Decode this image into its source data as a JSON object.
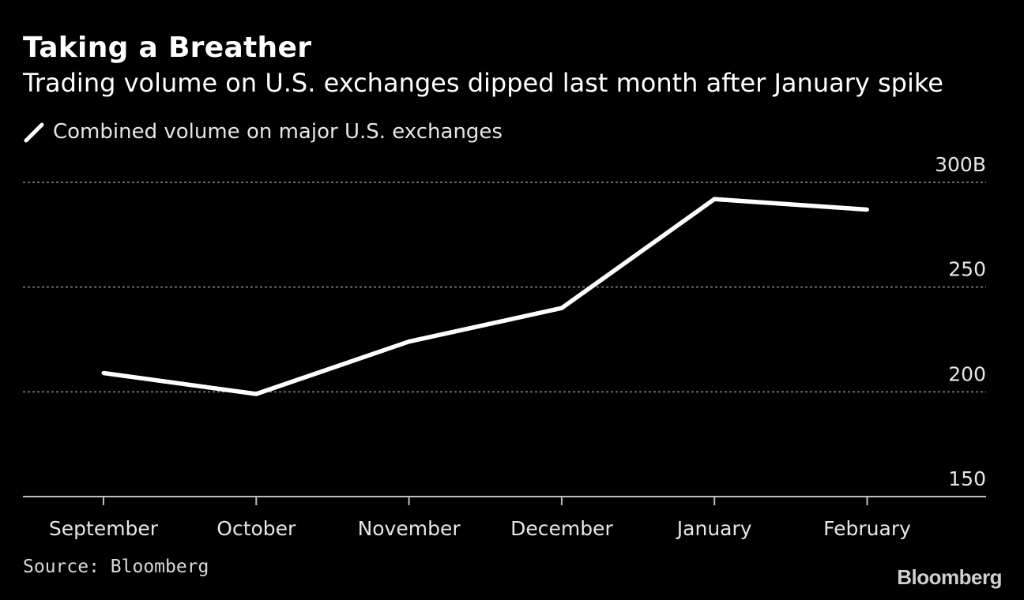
{
  "header": {
    "title": "Taking a Breather",
    "subtitle": "Trading volume on U.S. exchanges dipped last month after January spike"
  },
  "legend": {
    "label": "Combined volume on major U.S. exchanges",
    "icon": "line-swatch-icon"
  },
  "footer": {
    "source": "Source: Bloomberg",
    "brand": "Bloomberg"
  },
  "colors": {
    "background": "#000000",
    "line": "#ffffff",
    "grid": "#8c8c8c",
    "axis": "#bfbfbf"
  },
  "chart_data": {
    "type": "line",
    "title": "Taking a Breather",
    "subtitle": "Trading volume on U.S. exchanges dipped last month after January spike",
    "xlabel": "",
    "ylabel": "",
    "categories": [
      "September",
      "October",
      "November",
      "December",
      "January",
      "February"
    ],
    "series": [
      {
        "name": "Combined volume on major U.S. exchanges",
        "values": [
          209,
          199,
          224,
          240,
          292,
          287
        ]
      }
    ],
    "ylim": [
      150,
      300
    ],
    "yticks": [
      150,
      200,
      250,
      300
    ],
    "ytick_labels": [
      "150",
      "200",
      "250",
      "300B"
    ],
    "grid": true,
    "legend_position": "top-left"
  }
}
